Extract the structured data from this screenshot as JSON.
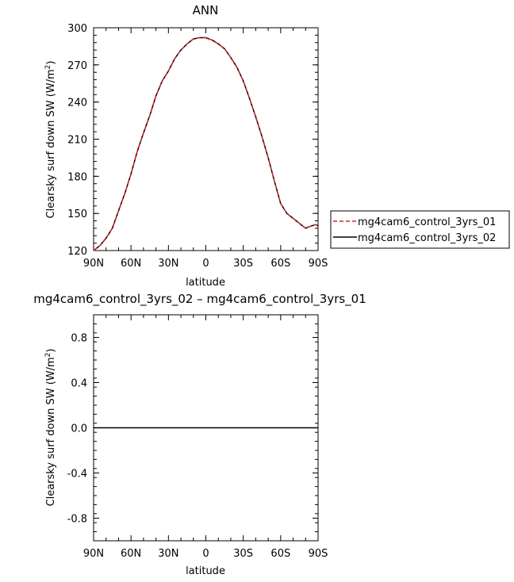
{
  "chart_data": [
    {
      "type": "line",
      "title": "ANN",
      "xlabel": "latitude",
      "ylabel": "Clearsky surf down SW (W/m",
      "ylabel_sup": "2",
      "ylabel_close": ")",
      "xlim": [
        90,
        -90
      ],
      "ylim": [
        120,
        300
      ],
      "xticks": [
        90,
        60,
        30,
        0,
        -30,
        -60,
        -90
      ],
      "xtick_labels": [
        "90N",
        "60N",
        "30N",
        "0",
        "30S",
        "60S",
        "90S"
      ],
      "yticks": [
        120,
        150,
        180,
        210,
        240,
        270,
        300
      ],
      "ytick_labels": [
        "120",
        "150",
        "180",
        "210",
        "240",
        "270",
        "300"
      ],
      "legend_position": "right",
      "x": [
        90,
        85,
        80,
        75,
        70,
        65,
        60,
        55,
        50,
        45,
        40,
        35,
        30,
        25,
        20,
        15,
        10,
        5,
        0,
        -5,
        -10,
        -15,
        -20,
        -25,
        -30,
        -35,
        -40,
        -45,
        -50,
        -55,
        -60,
        -65,
        -70,
        -75,
        -80,
        -82,
        -85,
        -88,
        -90
      ],
      "series": [
        {
          "name": "mg4cam6_control_3yrs_01",
          "color": "#d62728",
          "dash": "dashed",
          "values": [
            120,
            124,
            130,
            138,
            152,
            166,
            182,
            200,
            215,
            229,
            245,
            257,
            265,
            275,
            282,
            287,
            291,
            292,
            292,
            290,
            287,
            283,
            276,
            268,
            257,
            243,
            228,
            212,
            195,
            176,
            158,
            150,
            146,
            142,
            138,
            139,
            140,
            141,
            140
          ]
        },
        {
          "name": "mg4cam6_control_3yrs_02",
          "color": "#000000",
          "dash": "solid",
          "values": [
            120,
            124,
            130,
            138,
            152,
            166,
            182,
            200,
            215,
            229,
            245,
            257,
            265,
            275,
            282,
            287,
            291,
            292,
            292,
            290,
            287,
            283,
            276,
            268,
            257,
            243,
            228,
            212,
            195,
            176,
            158,
            150,
            146,
            142,
            138,
            139,
            140,
            141,
            140
          ]
        }
      ]
    },
    {
      "type": "line",
      "title": "mg4cam6_control_3yrs_02 – mg4cam6_control_3yrs_01",
      "xlabel": "latitude",
      "ylabel": "Clearsky surf down SW (W/m",
      "ylabel_sup": "2",
      "ylabel_close": ")",
      "xlim": [
        90,
        -90
      ],
      "ylim": [
        -1.0,
        1.0
      ],
      "xticks": [
        90,
        60,
        30,
        0,
        -30,
        -60,
        -90
      ],
      "xtick_labels": [
        "90N",
        "60N",
        "30N",
        "0",
        "30S",
        "60S",
        "90S"
      ],
      "yticks": [
        -0.8,
        -0.4,
        0.0,
        0.4,
        0.8
      ],
      "ytick_labels": [
        "-0.8",
        "-0.4",
        "0.0",
        "0.4",
        "0.8"
      ],
      "x": [
        90,
        -90
      ],
      "series": [
        {
          "color": "#000000",
          "dash": "solid",
          "values": [
            0,
            0
          ]
        }
      ]
    }
  ]
}
